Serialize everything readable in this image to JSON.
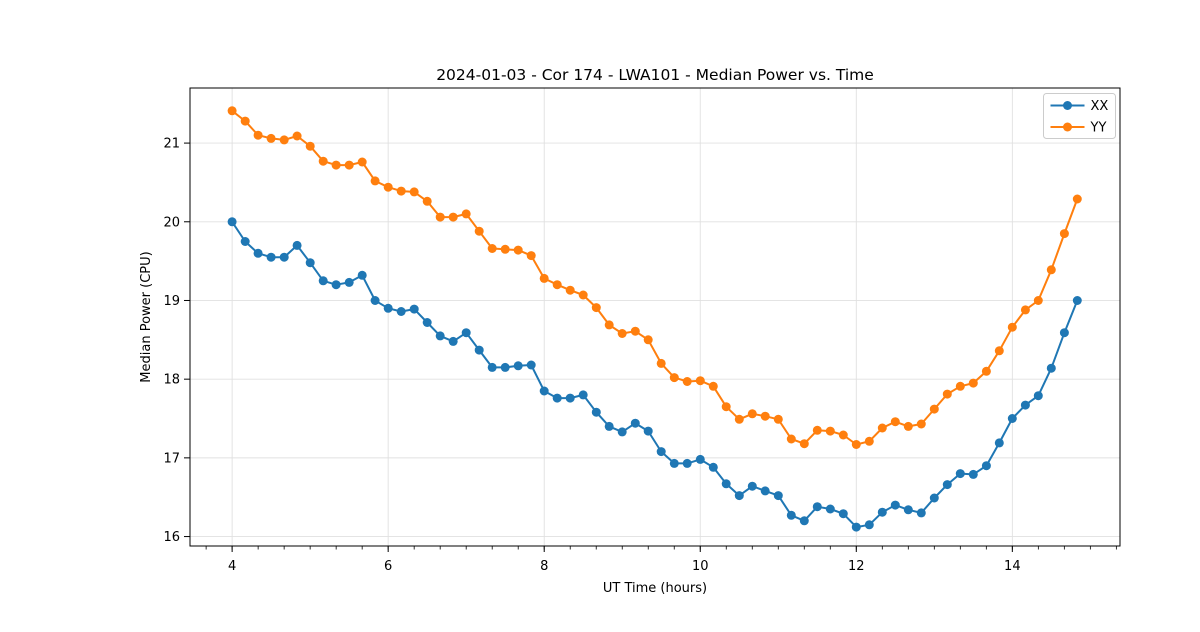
{
  "chart_data": {
    "type": "line",
    "title": "2024-01-03 - Cor 174 - LWA101 - Median Power vs. Time",
    "xlabel": "UT Time (hours)",
    "ylabel": "Median Power (CPU)",
    "xlim": [
      3.46,
      15.38
    ],
    "ylim": [
      15.88,
      21.7
    ],
    "xticks": [
      4,
      6,
      8,
      10,
      12,
      14
    ],
    "yticks": [
      16,
      17,
      18,
      19,
      20,
      21
    ],
    "x_minor_step": 0.333333,
    "grid": true,
    "legend_position": "upper right",
    "legend_labels": [
      "XX",
      "YY"
    ],
    "colors": {
      "XX": "#1f77b4",
      "YY": "#ff7f0e",
      "grid": "#e0e0e0",
      "spine": "#000000",
      "legend_border": "#cccccc"
    },
    "x": [
      4.0,
      4.167,
      4.333,
      4.5,
      4.667,
      4.833,
      5.0,
      5.167,
      5.333,
      5.5,
      5.667,
      5.833,
      6.0,
      6.167,
      6.333,
      6.5,
      6.667,
      6.833,
      7.0,
      7.167,
      7.333,
      7.5,
      7.667,
      7.833,
      8.0,
      8.167,
      8.333,
      8.5,
      8.667,
      8.833,
      9.0,
      9.167,
      9.333,
      9.5,
      9.667,
      9.833,
      10.0,
      10.167,
      10.333,
      10.5,
      10.667,
      10.833,
      11.0,
      11.167,
      11.333,
      11.5,
      11.667,
      11.833,
      12.0,
      12.167,
      12.333,
      12.5,
      12.667,
      12.833,
      13.0,
      13.167,
      13.333,
      13.5,
      13.667,
      13.833,
      14.0,
      14.167,
      14.333,
      14.5,
      14.667,
      14.833
    ],
    "series": [
      {
        "name": "XX",
        "color": "#1f77b4",
        "values": [
          20.0,
          19.75,
          19.6,
          19.55,
          19.55,
          19.7,
          19.48,
          19.25,
          19.2,
          19.23,
          19.32,
          19.0,
          18.9,
          18.86,
          18.89,
          18.72,
          18.55,
          18.48,
          18.59,
          18.37,
          18.15,
          18.15,
          18.17,
          18.18,
          17.85,
          17.76,
          17.76,
          17.8,
          17.58,
          17.4,
          17.33,
          17.44,
          17.34,
          17.08,
          16.93,
          16.93,
          16.98,
          16.88,
          16.67,
          16.52,
          16.64,
          16.58,
          16.52,
          16.27,
          16.2,
          16.38,
          16.35,
          16.29,
          16.12,
          16.15,
          16.31,
          16.4,
          16.34,
          16.3,
          16.49,
          16.66,
          16.8,
          16.79,
          16.9,
          17.19,
          17.5,
          17.67,
          17.79,
          18.14,
          18.59,
          19.0
        ]
      },
      {
        "name": "YY",
        "color": "#ff7f0e",
        "values": [
          21.41,
          21.28,
          21.1,
          21.06,
          21.04,
          21.09,
          20.96,
          20.77,
          20.72,
          20.72,
          20.76,
          20.52,
          20.44,
          20.39,
          20.38,
          20.26,
          20.06,
          20.06,
          20.1,
          19.88,
          19.66,
          19.65,
          19.64,
          19.57,
          19.28,
          19.2,
          19.13,
          19.07,
          18.91,
          18.69,
          18.58,
          18.61,
          18.5,
          18.2,
          18.02,
          17.97,
          17.98,
          17.91,
          17.65,
          17.49,
          17.56,
          17.53,
          17.49,
          17.24,
          17.18,
          17.35,
          17.34,
          17.29,
          17.17,
          17.21,
          17.38,
          17.46,
          17.4,
          17.43,
          17.62,
          17.81,
          17.91,
          17.95,
          18.1,
          18.36,
          18.66,
          18.88,
          19.0,
          19.39,
          19.85,
          20.29
        ]
      }
    ]
  }
}
